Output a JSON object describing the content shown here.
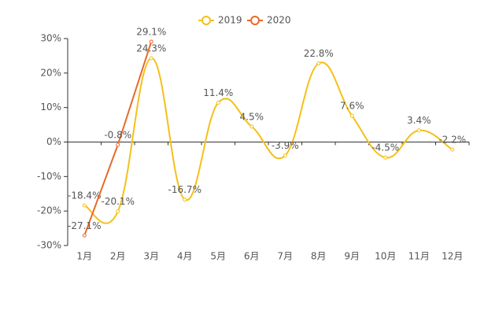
{
  "chart_data": {
    "type": "line",
    "categories": [
      "1月",
      "2月",
      "3月",
      "4月",
      "5月",
      "6月",
      "7月",
      "8月",
      "9月",
      "10月",
      "11月",
      "12月"
    ],
    "series": [
      {
        "name": "2019",
        "color": "#f5c018",
        "smooth": true,
        "values": [
          -18.4,
          -20.1,
          24.3,
          -16.7,
          11.4,
          4.5,
          -3.9,
          22.8,
          7.6,
          -4.5,
          3.4,
          -2.2
        ],
        "value_labels": [
          "-18.4%",
          "-20.1%",
          "24.3%",
          "-16.7%",
          "11.4%",
          "4.5%",
          "-3.9%",
          "22.8%",
          "7.6%",
          "-4.5%",
          "3.4%",
          "-2.2%"
        ]
      },
      {
        "name": "2020",
        "color": "#e8692a",
        "smooth": false,
        "values": [
          -27.1,
          -0.8,
          29.1,
          null,
          null,
          null,
          null,
          null,
          null,
          null,
          null,
          null
        ],
        "value_labels": [
          "-27.1%",
          "-0.8%",
          "29.1%",
          null,
          null,
          null,
          null,
          null,
          null,
          null,
          null,
          null
        ]
      }
    ],
    "ylim": [
      -30,
      30
    ],
    "yticks": [
      {
        "value": -30,
        "label": "-30%"
      },
      {
        "value": -20,
        "label": "-20%"
      },
      {
        "value": -10,
        "label": "-10%"
      },
      {
        "value": 0,
        "label": "0%"
      },
      {
        "value": 10,
        "label": "10%"
      },
      {
        "value": 20,
        "label": "20%"
      },
      {
        "value": 30,
        "label": "30%"
      }
    ]
  }
}
